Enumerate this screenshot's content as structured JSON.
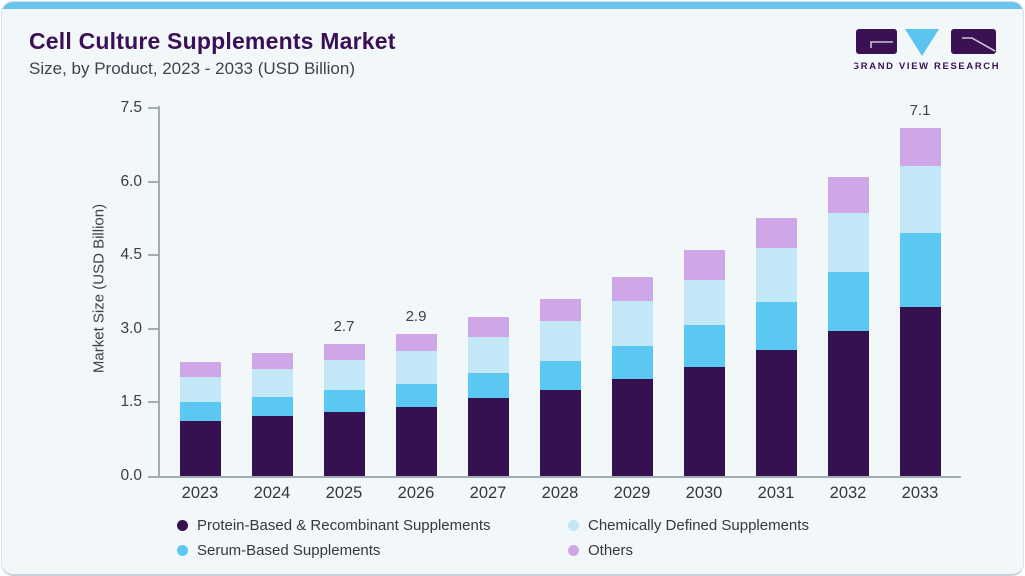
{
  "header": {
    "title": "Cell Culture Supplements Market",
    "subtitle": "Size, by Product, 2023 - 2033 (USD Billion)"
  },
  "logo": {
    "brand": "GRAND VIEW RESEARCH"
  },
  "chart_data": {
    "type": "bar",
    "stacked": true,
    "title": "Cell Culture Supplements Market Size, by Product, 2023 - 2033 (USD Billion)",
    "xlabel": "",
    "ylabel": "Market Size (USD Billion)",
    "ylim": [
      0,
      7.5
    ],
    "yticks": [
      0.0,
      1.5,
      3.0,
      4.5,
      6.0,
      7.5
    ],
    "ytick_labels": [
      "0.0",
      "1.5",
      "3.0",
      "4.5",
      "6.0",
      "7.5"
    ],
    "grid": false,
    "legend_position": "bottom",
    "categories": [
      "2023",
      "2024",
      "2025",
      "2026",
      "2027",
      "2028",
      "2029",
      "2030",
      "2031",
      "2032",
      "2033"
    ],
    "series": [
      {
        "name": "Protein-Based & Recombinant Supplements",
        "color": "#351150",
        "values": [
          1.12,
          1.22,
          1.3,
          1.4,
          1.58,
          1.75,
          1.97,
          2.22,
          2.57,
          2.95,
          3.45
        ]
      },
      {
        "name": "Serum-Based Supplements",
        "color": "#5BC8F3",
        "values": [
          0.38,
          0.39,
          0.45,
          0.47,
          0.52,
          0.59,
          0.67,
          0.86,
          0.98,
          1.21,
          1.5
        ]
      },
      {
        "name": "Chemically Defined Supplements",
        "color": "#C2E8F8",
        "values": [
          0.52,
          0.58,
          0.62,
          0.67,
          0.73,
          0.81,
          0.92,
          0.92,
          1.1,
          1.21,
          1.36
        ]
      },
      {
        "name": "Others",
        "color": "#CFA6E8",
        "values": [
          0.3,
          0.31,
          0.33,
          0.36,
          0.42,
          0.45,
          0.49,
          0.6,
          0.6,
          0.73,
          0.79
        ]
      }
    ],
    "totals": [
      2.32,
      2.5,
      2.7,
      2.9,
      3.25,
      3.6,
      4.05,
      4.6,
      5.25,
      6.1,
      7.1
    ],
    "value_labels": [
      "",
      "",
      "2.7",
      "2.9",
      "",
      "",
      "",
      "",
      "",
      "",
      "7.1"
    ],
    "legend_items": [
      {
        "label": "Protein-Based & Recombinant Supplements",
        "color": "#351150"
      },
      {
        "label": "Chemically Defined Supplements",
        "color": "#C2E8F8"
      },
      {
        "label": "Serum-Based Supplements",
        "color": "#5BC8F3"
      },
      {
        "label": "Others",
        "color": "#CFA6E8"
      }
    ]
  },
  "colors": {
    "background": "#F2F7FA",
    "top_strip": "#6AC3EB",
    "card_border": "#D7E0E8",
    "axis": "#A3ABB3",
    "text": "#3F434C",
    "title": "#3A0F55"
  }
}
